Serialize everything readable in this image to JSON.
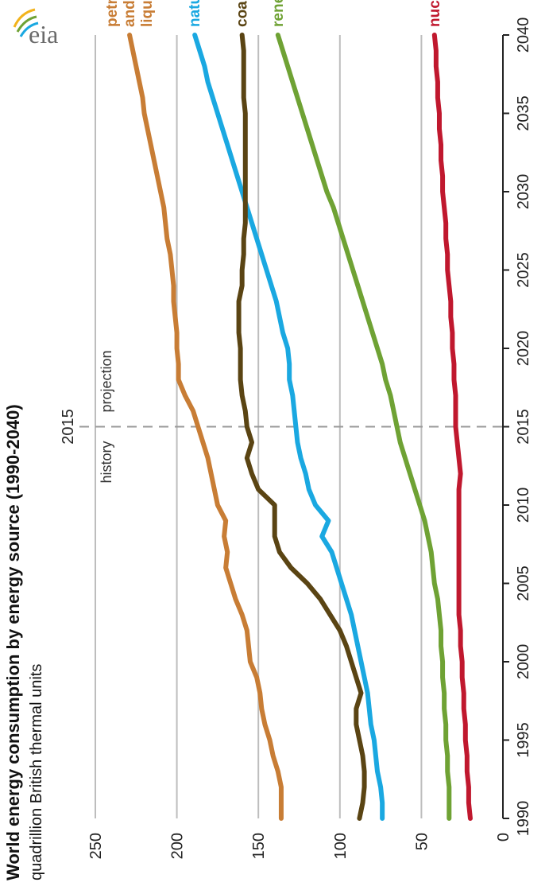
{
  "logo_text": "eia",
  "chart_data": {
    "type": "line",
    "title": "World energy consumption by energy source (1990-2040)",
    "subtitle": "quadrillion British thermal units",
    "orientation": "rotated 90 degrees counter-clockwise",
    "x": [
      1990,
      1991,
      1992,
      1993,
      1994,
      1995,
      1996,
      1997,
      1998,
      1999,
      2000,
      2001,
      2002,
      2003,
      2004,
      2005,
      2006,
      2007,
      2008,
      2009,
      2010,
      2011,
      2012,
      2013,
      2014,
      2015,
      2016,
      2017,
      2018,
      2019,
      2020,
      2021,
      2022,
      2023,
      2024,
      2025,
      2026,
      2027,
      2028,
      2029,
      2030,
      2031,
      2032,
      2033,
      2034,
      2035,
      2036,
      2037,
      2038,
      2039,
      2040
    ],
    "xlim": [
      1990,
      2040
    ],
    "x_ticks": [
      "1990",
      "1995",
      "2000",
      "2005",
      "2010",
      "2015",
      "2020",
      "2025",
      "2030",
      "2035",
      "2040"
    ],
    "ylim": [
      0,
      250
    ],
    "y_ticks": [
      "0",
      "50",
      "100",
      "150",
      "200",
      "250"
    ],
    "grid": "horizontal gridlines at 50, 100, 150, 200, 250",
    "vline": {
      "x": 2015,
      "label": "2015",
      "left_label": "history",
      "right_label": "projection"
    },
    "series": [
      {
        "name": "petroleum and other liquids",
        "label_lines": [
          "petroleum",
          "and other",
          "liquids"
        ],
        "color": "#c87d35",
        "values": [
          136,
          136,
          136,
          138,
          141,
          143,
          146,
          148,
          149,
          151,
          155,
          156,
          157,
          160,
          164,
          167,
          170,
          169,
          171,
          170,
          175,
          177,
          179,
          181,
          184,
          187,
          190,
          195,
          199,
          199,
          200,
          200,
          201,
          202,
          202,
          203,
          204,
          206,
          207,
          208,
          210,
          212,
          214,
          216,
          218,
          220,
          221,
          223,
          225,
          227,
          229
        ]
      },
      {
        "name": "natural gas",
        "label_lines": [
          "natural gas"
        ],
        "color": "#1aa8e1",
        "values": [
          74,
          74,
          75,
          77,
          78,
          79,
          81,
          82,
          83,
          85,
          87,
          89,
          91,
          93,
          96,
          99,
          102,
          105,
          111,
          107,
          115,
          119,
          121,
          124,
          126,
          127,
          128,
          129,
          131,
          131,
          132,
          135,
          137,
          139,
          142,
          145,
          148,
          151,
          154,
          157,
          160,
          163,
          166,
          169,
          172,
          175,
          178,
          181,
          183,
          186,
          189
        ]
      },
      {
        "name": "coal",
        "label_lines": [
          "coal"
        ],
        "color": "#5a4413",
        "values": [
          88,
          86,
          85,
          85,
          86,
          88,
          90,
          90,
          87,
          90,
          93,
          96,
          100,
          106,
          112,
          120,
          130,
          137,
          140,
          140,
          140,
          150,
          154,
          157,
          154,
          157,
          158,
          160,
          161,
          161,
          161,
          162,
          162,
          162,
          160,
          160,
          159,
          159,
          158,
          158,
          158,
          158,
          158,
          158,
          158,
          158,
          159,
          159,
          159,
          159,
          160
        ]
      },
      {
        "name": "renewables",
        "label_lines": [
          "renewables"
        ],
        "color": "#6fa234",
        "values": [
          33,
          33,
          33,
          34,
          34,
          35,
          35,
          36,
          36,
          37,
          37,
          38,
          38,
          39,
          40,
          42,
          43,
          44,
          46,
          48,
          51,
          54,
          57,
          60,
          63,
          65,
          67,
          69,
          72,
          74,
          77,
          80,
          83,
          86,
          89,
          92,
          95,
          98,
          101,
          104,
          108,
          111,
          114,
          117,
          120,
          123,
          126,
          129,
          132,
          135,
          138
        ]
      },
      {
        "name": "nuclear",
        "label_lines": [
          "nuclear"
        ],
        "color": "#c0182e",
        "values": [
          20,
          21,
          21,
          22,
          22,
          23,
          23,
          24,
          24,
          25,
          25,
          26,
          26,
          27,
          27,
          27,
          27,
          27,
          27,
          27,
          27,
          27,
          26,
          27,
          28,
          29,
          29,
          29,
          30,
          30,
          31,
          31,
          32,
          32,
          33,
          34,
          34,
          35,
          35,
          36,
          37,
          37,
          38,
          38,
          39,
          39,
          40,
          40,
          41,
          41,
          42
        ]
      }
    ]
  }
}
